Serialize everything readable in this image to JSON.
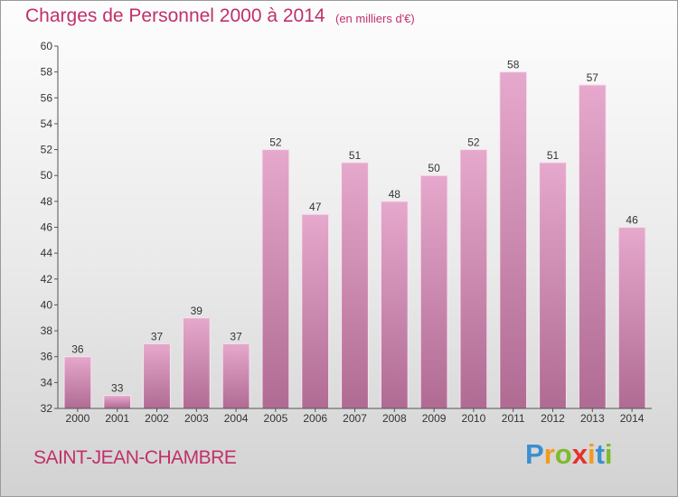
{
  "chart_data": {
    "type": "bar",
    "title": "Charges de Personnel 2000 à 2014",
    "subtitle": "(en milliers d'€)",
    "categories": [
      "2000",
      "2001",
      "2002",
      "2003",
      "2004",
      "2005",
      "2006",
      "2007",
      "2008",
      "2009",
      "2010",
      "2011",
      "2012",
      "2013",
      "2014"
    ],
    "values": [
      36,
      33,
      37,
      39,
      37,
      52,
      47,
      51,
      48,
      50,
      52,
      58,
      51,
      57,
      46
    ],
    "ylim": [
      32,
      60
    ],
    "yticks": [
      32,
      34,
      36,
      38,
      40,
      42,
      44,
      46,
      48,
      50,
      52,
      54,
      56,
      58,
      60
    ],
    "grid": false,
    "bar_color": "#c77ba6"
  },
  "commune": "SAINT-JEAN-CHAMBRE",
  "logo": {
    "letters": [
      "P",
      "r",
      "o",
      "x",
      "i",
      "t",
      "i"
    ],
    "colors": [
      "#3a8fd0",
      "#f39a1e",
      "#7fba2d",
      "#e4312b",
      "#f39a1e",
      "#3a8fd0",
      "#7fba2d"
    ]
  }
}
